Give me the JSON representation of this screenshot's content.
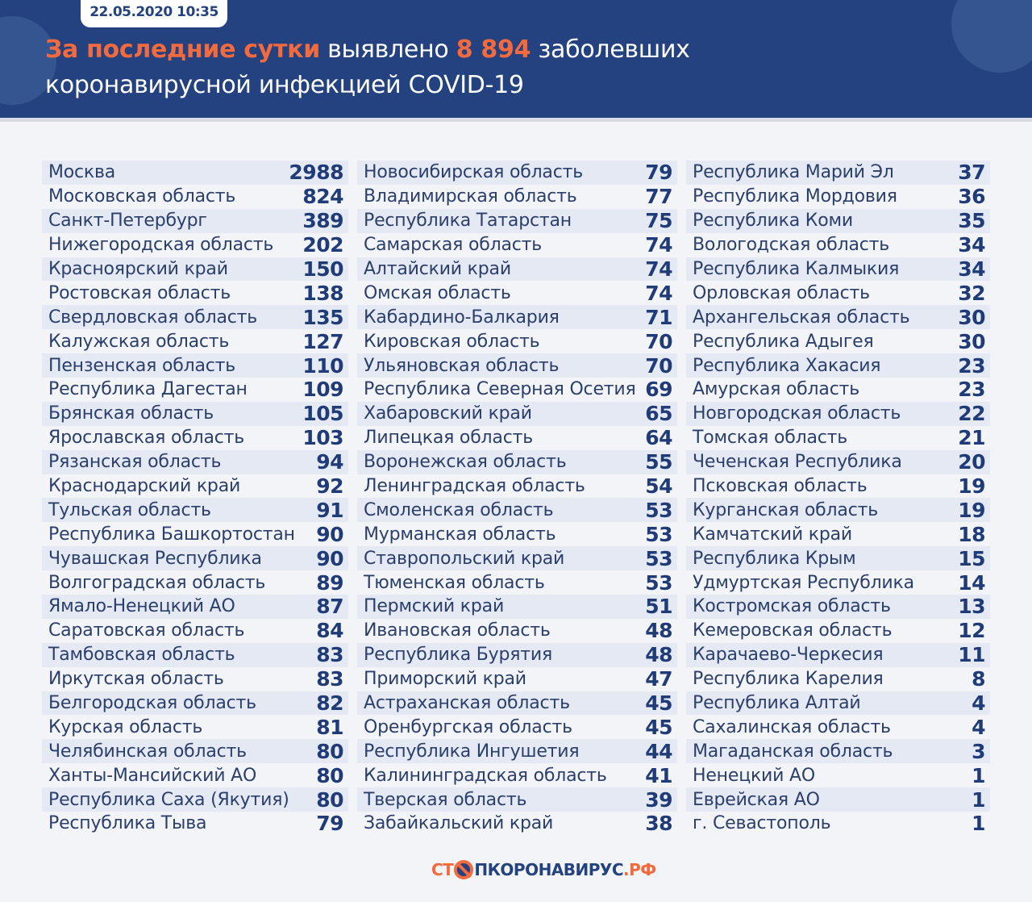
{
  "header": {
    "date": "22.05.2020 10:35",
    "title_highlight": "За последние сутки",
    "title_mid": " выявлено ",
    "count": "8 894",
    "title_end": " заболевших",
    "title_line2": "коронавирусной инфекцией COVID-19"
  },
  "colors": {
    "header_bg": "#24427f",
    "accent": "#f26a3e",
    "row_stripe": "#e4e9f3"
  },
  "columns": [
    [
      [
        "Москва",
        "2988"
      ],
      [
        "Московская область",
        "824"
      ],
      [
        "Санкт-Петербург",
        "389"
      ],
      [
        "Нижегородская область",
        "202"
      ],
      [
        "Красноярский край",
        "150"
      ],
      [
        "Ростовская область",
        "138"
      ],
      [
        "Свердловская область",
        "135"
      ],
      [
        "Калужская область",
        "127"
      ],
      [
        "Пензенская область",
        "110"
      ],
      [
        "Республика Дагестан",
        "109"
      ],
      [
        "Брянская область",
        "105"
      ],
      [
        "Ярославская область",
        "103"
      ],
      [
        "Рязанская область",
        "94"
      ],
      [
        "Краснодарский край",
        "92"
      ],
      [
        "Тульская область",
        "91"
      ],
      [
        "Республика Башкортостан",
        "90"
      ],
      [
        "Чувашская Республика",
        "90"
      ],
      [
        "Волгоградская область",
        "89"
      ],
      [
        "Ямало-Ненецкий АО",
        "87"
      ],
      [
        "Саратовская область",
        "84"
      ],
      [
        "Тамбовская область",
        "83"
      ],
      [
        "Иркутская область",
        "83"
      ],
      [
        "Белгородская область",
        "82"
      ],
      [
        "Курская область",
        "81"
      ],
      [
        "Челябинская область",
        "80"
      ],
      [
        "Ханты-Мансийский АО",
        "80"
      ],
      [
        "Республика Саха (Якутия)",
        "80"
      ],
      [
        "Республика Тыва",
        "79"
      ]
    ],
    [
      [
        "Новосибирская область",
        "79"
      ],
      [
        "Владимирская область",
        "77"
      ],
      [
        "Республика Татарстан",
        "75"
      ],
      [
        "Самарская область",
        "74"
      ],
      [
        "Алтайский край",
        "74"
      ],
      [
        "Омская область",
        "74"
      ],
      [
        "Кабардино-Балкария",
        "71"
      ],
      [
        "Кировская область",
        "70"
      ],
      [
        "Ульяновская область",
        "70"
      ],
      [
        "Республика Северная Осетия",
        "69"
      ],
      [
        "Хабаровский край",
        "65"
      ],
      [
        "Липецкая область",
        "64"
      ],
      [
        "Воронежская область",
        "55"
      ],
      [
        "Ленинградская область",
        "54"
      ],
      [
        "Смоленская область",
        "53"
      ],
      [
        "Мурманская область",
        "53"
      ],
      [
        "Ставропольский край",
        "53"
      ],
      [
        "Тюменская область",
        "53"
      ],
      [
        "Пермский край",
        "51"
      ],
      [
        "Ивановская область",
        "48"
      ],
      [
        "Республика Бурятия",
        "48"
      ],
      [
        "Приморский край",
        "47"
      ],
      [
        "Астраханская область",
        "45"
      ],
      [
        "Оренбургская область",
        "45"
      ],
      [
        "Республика Ингушетия",
        "44"
      ],
      [
        "Калининградская область",
        "41"
      ],
      [
        "Тверская область",
        "39"
      ],
      [
        "Забайкальский край",
        "38"
      ]
    ],
    [
      [
        "Республика Марий Эл",
        "37"
      ],
      [
        "Республика Мордовия",
        "36"
      ],
      [
        "Республика Коми",
        "35"
      ],
      [
        "Вологодская область",
        "34"
      ],
      [
        "Республика Калмыкия",
        "34"
      ],
      [
        "Орловская область",
        "32"
      ],
      [
        "Архангельская область",
        "30"
      ],
      [
        "Республика Адыгея",
        "30"
      ],
      [
        "Республика Хакасия",
        "23"
      ],
      [
        "Амурская область",
        "23"
      ],
      [
        "Новгородская область",
        "22"
      ],
      [
        "Томская область",
        "21"
      ],
      [
        "Чеченская Республика",
        "20"
      ],
      [
        "Псковская область",
        "19"
      ],
      [
        "Курганская область",
        "19"
      ],
      [
        "Камчатский край",
        "18"
      ],
      [
        "Республика Крым",
        "15"
      ],
      [
        "Удмуртская Республика",
        "14"
      ],
      [
        "Костромская область",
        "13"
      ],
      [
        "Кемеровская область",
        "12"
      ],
      [
        "Карачаево-Черкесия",
        "11"
      ],
      [
        "Республика Карелия",
        "8"
      ],
      [
        "Республика Алтай",
        "4"
      ],
      [
        "Сахалинская область",
        "4"
      ],
      [
        "Магаданская область",
        "3"
      ],
      [
        "Ненецкий АО",
        "1"
      ],
      [
        "Еврейская АО",
        "1"
      ],
      [
        "г. Севастополь",
        "1"
      ]
    ]
  ],
  "footer": {
    "logo_part1": "СТ",
    "logo_part2": "ПКОРОНАВИРУС",
    "logo_part3": ".РФ"
  }
}
